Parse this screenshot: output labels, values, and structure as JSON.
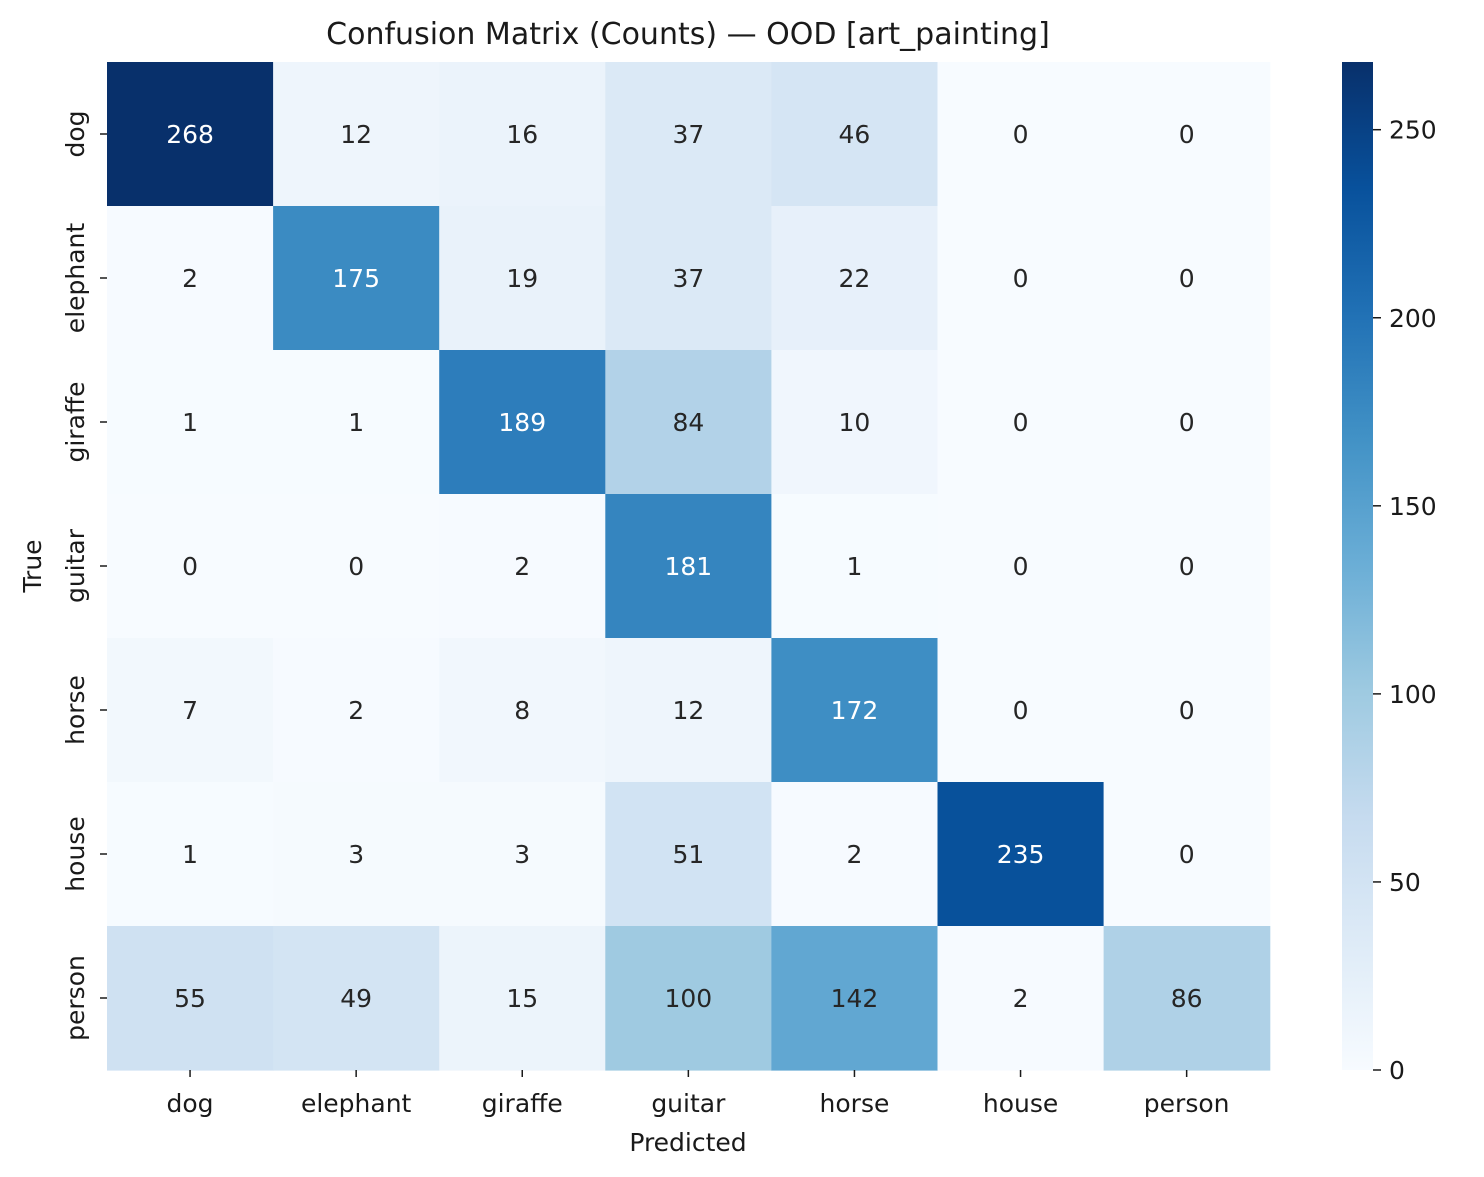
{
  "chart_data": {
    "type": "heatmap",
    "title": "Confusion Matrix (Counts) — OOD [art_painting]",
    "xlabel": "Predicted",
    "ylabel": "True",
    "x_categories": [
      "dog",
      "elephant",
      "giraffe",
      "guitar",
      "horse",
      "house",
      "person"
    ],
    "y_categories": [
      "dog",
      "elephant",
      "giraffe",
      "guitar",
      "horse",
      "house",
      "person"
    ],
    "values": [
      [
        268,
        12,
        16,
        37,
        46,
        0,
        0
      ],
      [
        2,
        175,
        19,
        37,
        22,
        0,
        0
      ],
      [
        1,
        1,
        189,
        84,
        10,
        0,
        0
      ],
      [
        0,
        0,
        2,
        181,
        1,
        0,
        0
      ],
      [
        7,
        2,
        8,
        12,
        172,
        0,
        0
      ],
      [
        1,
        3,
        3,
        51,
        2,
        235,
        0
      ],
      [
        55,
        49,
        15,
        100,
        142,
        2,
        86
      ]
    ],
    "colormap": "Blues",
    "color_range": [
      0,
      268
    ],
    "colorbar_ticks": [
      0,
      50,
      100,
      150,
      200,
      250
    ],
    "colorbar_tick_labels": [
      "0",
      "50",
      "100",
      "150",
      "200",
      "250"
    ],
    "grid": false
  }
}
